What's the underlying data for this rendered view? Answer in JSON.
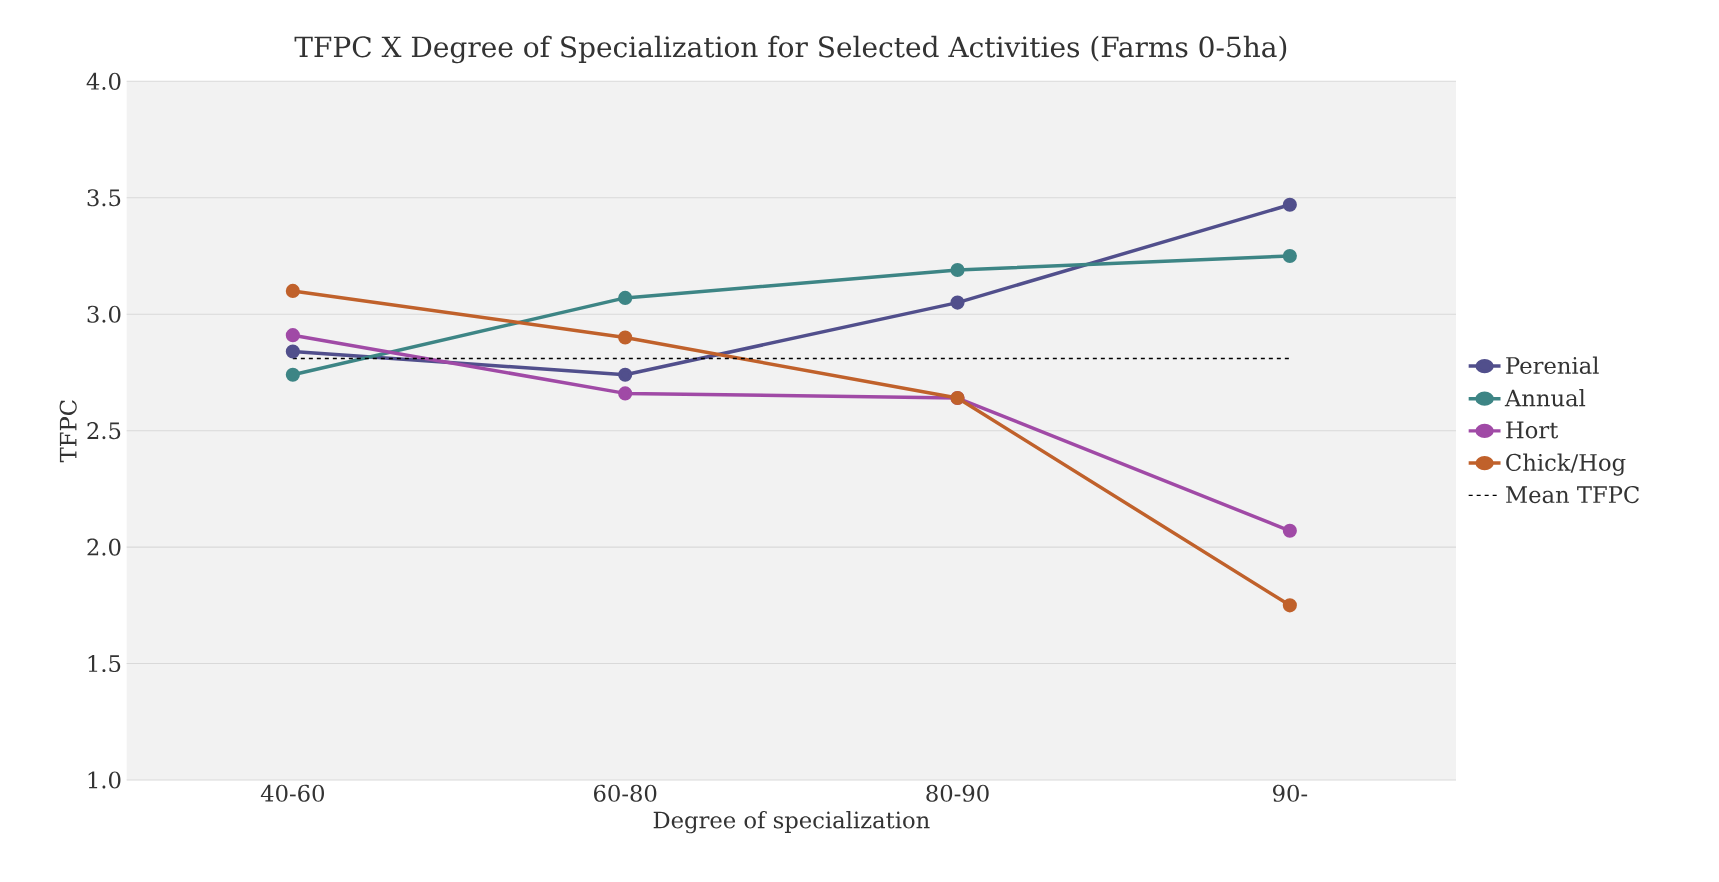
{
  "chart_data": {
    "type": "line",
    "title": "TFPC X Degree of Specialization for Selected Activities (Farms 0-5ha)",
    "xlabel": "Degree of specialization",
    "ylabel": "TFPC",
    "categories": [
      "40-60",
      "60-80",
      "80-90",
      "90-"
    ],
    "series": [
      {
        "name": "Perenial",
        "color": "#514f8c",
        "values": [
          2.84,
          2.74,
          3.05,
          3.47
        ]
      },
      {
        "name": "Annual",
        "color": "#3d8585",
        "values": [
          2.74,
          3.07,
          3.19,
          3.25
        ]
      },
      {
        "name": "Hort",
        "color": "#a04aa6",
        "values": [
          2.91,
          2.66,
          2.64,
          2.07
        ]
      },
      {
        "name": "Chick/Hog",
        "color": "#c0612b",
        "values": [
          3.1,
          2.9,
          2.64,
          1.75
        ]
      },
      {
        "name": "Mean TFPC",
        "color": "#000000",
        "values": [
          2.81,
          2.81,
          2.81,
          2.81
        ],
        "marker": "none",
        "line_style": "dashed"
      }
    ],
    "ylim": [
      1.0,
      4.0
    ],
    "yticks": [
      {
        "value": 1.0,
        "label": "1.0"
      },
      {
        "value": 1.5,
        "label": "1.5"
      },
      {
        "value": 2.0,
        "label": "2.0"
      },
      {
        "value": 2.5,
        "label": "2.5"
      },
      {
        "value": 3.0,
        "label": "3.0"
      },
      {
        "value": 3.5,
        "label": "3.5"
      },
      {
        "value": 4.0,
        "label": "4.0"
      }
    ],
    "grid": "y",
    "legend": "right",
    "marker": "circle",
    "line_style": "solid"
  }
}
